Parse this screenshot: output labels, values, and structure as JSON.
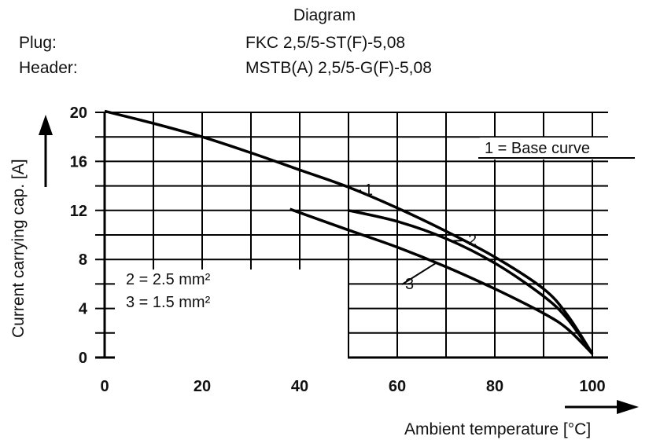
{
  "header": {
    "title": "Diagram",
    "plug_label": "Plug:",
    "plug_value": "FKC 2,5/5-ST(F)-5,08",
    "header_label": "Header:",
    "header_value": "MSTB(A) 2,5/5-G(F)-5,08"
  },
  "chart_data": {
    "type": "line",
    "title": "Diagram",
    "xlabel": "Ambient temperature [°C]",
    "ylabel": "Current carrying cap. [A]",
    "xlim": [
      0,
      100
    ],
    "ylim": [
      0,
      20
    ],
    "x_ticks": [
      "0",
      "20",
      "40",
      "60",
      "80",
      "100"
    ],
    "y_ticks": [
      "0",
      "4",
      "8",
      "12",
      "16",
      "20"
    ],
    "grid": true,
    "series": [
      {
        "name": "1",
        "label": "1",
        "points": [
          [
            0,
            20.1
          ],
          [
            10,
            19.1
          ],
          [
            20,
            18.0
          ],
          [
            30,
            16.7
          ],
          [
            40,
            15.3
          ],
          [
            50,
            13.9
          ],
          [
            60,
            12.2
          ],
          [
            70,
            10.3
          ],
          [
            80,
            8.2
          ],
          [
            90,
            5.6
          ],
          [
            95,
            3.4
          ],
          [
            100,
            0.3
          ]
        ]
      },
      {
        "name": "2",
        "label": "2",
        "points": [
          [
            50,
            12.0
          ],
          [
            60,
            11.1
          ],
          [
            70,
            9.7
          ],
          [
            80,
            7.7
          ],
          [
            90,
            5.0
          ],
          [
            95,
            3.1
          ],
          [
            100,
            0.3
          ]
        ]
      },
      {
        "name": "3",
        "label": "3",
        "points": [
          [
            38,
            12.1
          ],
          [
            50,
            10.4
          ],
          [
            60,
            9.0
          ],
          [
            70,
            7.4
          ],
          [
            80,
            5.6
          ],
          [
            90,
            3.6
          ],
          [
            95,
            2.3
          ],
          [
            100,
            0.3
          ]
        ]
      }
    ],
    "annotations": {
      "base_curve": "1 = Base curve",
      "legend_2": "2 = 2.5 mm²",
      "legend_3": "3 = 1.5 mm²"
    }
  }
}
